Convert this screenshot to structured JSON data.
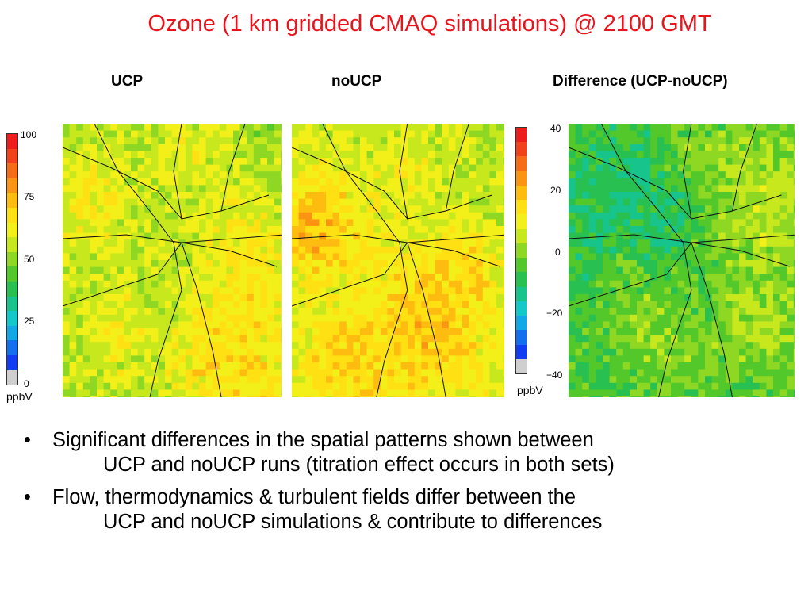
{
  "slide": {
    "title": "Ozone (1 km gridded CMAQ simulations) @ 2100 GMT"
  },
  "panels": [
    {
      "label": "UCP",
      "map": "ozone-ucp"
    },
    {
      "label": "noUCP",
      "map": "ozone-noucp"
    },
    {
      "label": "Difference (UCP-noUCP)",
      "map": "ozone-difference"
    }
  ],
  "colorbars": {
    "ozone": {
      "ticks": [
        "100",
        "75",
        "50",
        "25",
        "0"
      ],
      "unit": "ppbV",
      "colors": [
        "#ee1c1c",
        "#f2421a",
        "#f76c16",
        "#fb9412",
        "#ffbc10",
        "#ffe012",
        "#f2f018",
        "#c8e81e",
        "#8ed824",
        "#52c82a",
        "#28c050",
        "#16c48c",
        "#12c8c8",
        "#12a8e6",
        "#1270ee",
        "#123cf2",
        "#cfcfcf"
      ]
    },
    "difference": {
      "ticks": [
        "40",
        "20",
        "0",
        "−20",
        "−40"
      ],
      "unit": "ppbV",
      "colors": [
        "#ee1c1c",
        "#f2421a",
        "#f76c16",
        "#fb9412",
        "#ffbc10",
        "#ffe012",
        "#f2f018",
        "#c8e81e",
        "#8ed824",
        "#52c82a",
        "#28c050",
        "#16c48c",
        "#12c8c8",
        "#12a8e6",
        "#1270ee",
        "#123cf2",
        "#cfcfcf"
      ]
    }
  },
  "bullets": [
    {
      "line1": "Significant differences in the spatial patterns shown between",
      "line2": "UCP and noUCP runs (titration effect occurs in both sets)"
    },
    {
      "line1": "Flow, thermodynamics & turbulent fields differ between the",
      "line2": "UCP and noUCP simulations & contribute to differences"
    }
  ]
}
